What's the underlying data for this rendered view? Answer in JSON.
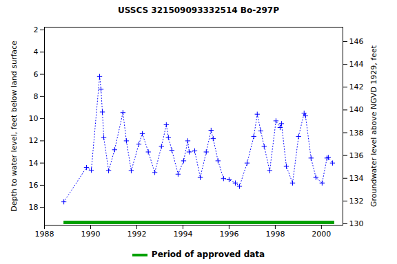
{
  "chart_data": {
    "type": "line",
    "title": "USSCS 321509093332514 Bo-297P",
    "y_label": "Depth to water level, feet below land surface",
    "y2_label": "Groundwater level above NGVD 1929, feet",
    "x": [
      1988.84,
      1989.82,
      1990.03,
      1990.39,
      1990.45,
      1990.51,
      1990.57,
      1990.78,
      1991.04,
      1991.4,
      1991.55,
      1991.76,
      1992.09,
      1992.24,
      1992.5,
      1992.78,
      1993.07,
      1993.28,
      1993.37,
      1993.52,
      1993.79,
      1994.03,
      1994.21,
      1994.27,
      1994.51,
      1994.75,
      1995.01,
      1995.22,
      1995.31,
      1995.52,
      1995.76,
      1996.0,
      1996.27,
      1996.45,
      1996.78,
      1997.07,
      1997.22,
      1997.37,
      1997.52,
      1997.76,
      1998.03,
      1998.21,
      1998.27,
      1998.48,
      1998.75,
      1999.01,
      1999.25,
      1999.31,
      1999.55,
      1999.76,
      2000.03,
      2000.24,
      2000.3,
      2000.48
    ],
    "series": [
      {
        "color": "#0000ff",
        "marker": "plus",
        "line_style": "dotted",
        "values": [
          17.5,
          14.4,
          14.65,
          6.2,
          7.35,
          9.4,
          11.7,
          14.7,
          12.8,
          9.45,
          12.0,
          14.7,
          12.3,
          11.35,
          13.0,
          14.85,
          12.5,
          10.55,
          11.7,
          12.85,
          15.0,
          13.8,
          12.0,
          13.0,
          12.9,
          15.3,
          13.0,
          11.05,
          11.8,
          13.8,
          15.4,
          15.5,
          15.8,
          16.1,
          14.0,
          11.6,
          9.6,
          11.1,
          12.5,
          14.7,
          10.2,
          10.8,
          10.45,
          14.3,
          15.8,
          11.6,
          9.5,
          9.75,
          13.55,
          15.3,
          15.8,
          13.55,
          13.5,
          14.0
        ]
      }
    ],
    "approved_period": {
      "label": "Period of approved data",
      "color": "#00a000",
      "x": [
        1988.84,
        2000.57
      ]
    },
    "xlim": [
      1988,
      2000.93
    ],
    "xticks": [
      1988,
      1990,
      1992,
      1994,
      1996,
      1998,
      2000
    ],
    "ylim": [
      19.6,
      1.75
    ],
    "yticks": [
      2,
      4,
      6,
      8,
      10,
      12,
      14,
      16,
      18
    ],
    "y2lim": [
      129.88,
      147.27
    ],
    "y2ticks": [
      130,
      132,
      134,
      136,
      138,
      140,
      142,
      144,
      146
    ],
    "legend": "bottom",
    "grid": false
  }
}
